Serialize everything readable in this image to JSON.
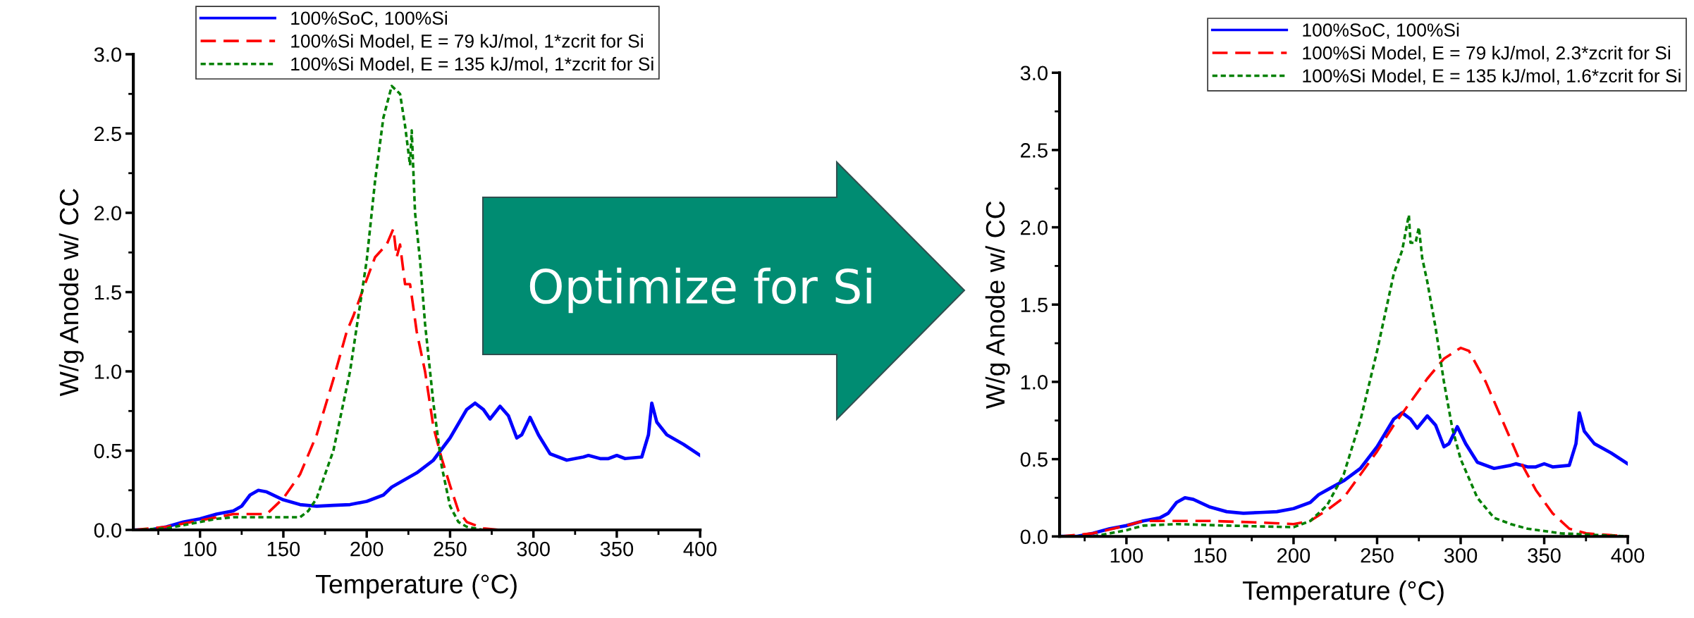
{
  "chart_data": [
    {
      "type": "line",
      "xlabel": "Temperature (°C)",
      "ylabel": "W/g Anode w/ CC",
      "xlim": [
        60,
        400
      ],
      "ylim": [
        0,
        3
      ],
      "xticks": [
        100,
        150,
        200,
        250,
        300,
        350,
        400
      ],
      "yticks": [
        {
          "value": 0,
          "label": "0.0"
        },
        {
          "value": 0.5,
          "label": "0.5"
        },
        {
          "value": 1,
          "label": "1.0"
        },
        {
          "value": 1.5,
          "label": "1.5"
        },
        {
          "value": 2,
          "label": "2.0"
        },
        {
          "value": 2.5,
          "label": "2.5"
        },
        {
          "value": 3,
          "label": "3.0"
        }
      ],
      "grid": false,
      "legend": "top",
      "marker": "none",
      "annotations": [
        "Optimize for Si"
      ],
      "series": [
        {
          "name": "100%SoC, 100%Si",
          "color": "#0000ff",
          "line_style": "solid",
          "x": [
            60,
            70,
            80,
            90,
            100,
            110,
            120,
            125,
            130,
            135,
            140,
            150,
            160,
            170,
            180,
            190,
            200,
            210,
            215,
            220,
            230,
            240,
            250,
            255,
            260,
            265,
            270,
            274,
            280,
            285,
            290,
            293,
            298,
            303,
            310,
            320,
            330,
            333,
            340,
            345,
            350,
            355,
            365,
            369,
            371,
            374,
            380,
            390,
            400
          ],
          "values": [
            0.0,
            0.0,
            0.02,
            0.05,
            0.07,
            0.1,
            0.12,
            0.15,
            0.22,
            0.25,
            0.24,
            0.19,
            0.16,
            0.15,
            0.155,
            0.16,
            0.18,
            0.22,
            0.27,
            0.3,
            0.36,
            0.44,
            0.58,
            0.67,
            0.76,
            0.8,
            0.76,
            0.7,
            0.78,
            0.72,
            0.58,
            0.6,
            0.71,
            0.6,
            0.48,
            0.44,
            0.46,
            0.47,
            0.45,
            0.45,
            0.47,
            0.45,
            0.46,
            0.6,
            0.8,
            0.68,
            0.6,
            0.54,
            0.47
          ]
        },
        {
          "name": "100%Si Model, E = 79 kJ/mol, 1*zcrit for Si",
          "color": "#ff0000",
          "line_style": "dashed",
          "x": [
            60,
            80,
            100,
            120,
            130,
            140,
            150,
            160,
            170,
            180,
            188,
            192,
            200,
            205,
            212,
            216,
            218,
            220,
            223,
            226,
            230,
            235,
            240,
            245,
            250,
            255,
            260,
            270,
            280
          ],
          "values": [
            0,
            0.02,
            0.06,
            0.1,
            0.1,
            0.1,
            0.2,
            0.35,
            0.6,
            0.95,
            1.25,
            1.35,
            1.58,
            1.72,
            1.8,
            1.9,
            1.72,
            1.8,
            1.55,
            1.55,
            1.25,
            1.0,
            0.65,
            0.45,
            0.28,
            0.12,
            0.05,
            0.01,
            0.0
          ]
        },
        {
          "name": "100%Si Model, E = 135 kJ/mol, 1*zcrit for Si",
          "color": "#008000",
          "line_style": "dotted",
          "x": [
            60,
            80,
            100,
            110,
            120,
            140,
            160,
            165,
            170,
            180,
            190,
            200,
            205,
            210,
            215,
            220,
            223,
            226,
            227,
            229,
            232,
            235,
            240,
            245,
            250,
            255,
            260,
            270
          ],
          "values": [
            0,
            0.01,
            0.05,
            0.07,
            0.08,
            0.08,
            0.08,
            0.12,
            0.2,
            0.5,
            1.0,
            1.7,
            2.2,
            2.6,
            2.8,
            2.75,
            2.55,
            2.3,
            2.52,
            2.0,
            1.7,
            1.3,
            0.8,
            0.4,
            0.15,
            0.05,
            0.02,
            0
          ]
        }
      ]
    },
    {
      "type": "line",
      "xlabel": "Temperature (°C)",
      "ylabel": "W/g Anode w/ CC",
      "xlim": [
        60,
        400
      ],
      "ylim": [
        0,
        3
      ],
      "xticks": [
        100,
        150,
        200,
        250,
        300,
        350,
        400
      ],
      "yticks": [
        {
          "value": 0,
          "label": "0.0"
        },
        {
          "value": 0.5,
          "label": "0.5"
        },
        {
          "value": 1,
          "label": "1.0"
        },
        {
          "value": 1.5,
          "label": "1.5"
        },
        {
          "value": 2,
          "label": "2.0"
        },
        {
          "value": 2.5,
          "label": "2.5"
        },
        {
          "value": 3,
          "label": "3.0"
        }
      ],
      "grid": false,
      "legend": "top right",
      "marker": "none",
      "series": [
        {
          "name": "100%SoC, 100%Si",
          "color": "#0000ff",
          "line_style": "solid",
          "x": [
            60,
            70,
            80,
            90,
            100,
            110,
            120,
            125,
            130,
            135,
            140,
            150,
            160,
            170,
            180,
            190,
            200,
            210,
            215,
            220,
            230,
            240,
            250,
            255,
            260,
            265,
            270,
            274,
            280,
            285,
            290,
            293,
            298,
            303,
            310,
            320,
            330,
            333,
            340,
            345,
            350,
            355,
            365,
            369,
            371,
            374,
            380,
            390,
            400
          ],
          "values": [
            0.0,
            0.0,
            0.02,
            0.05,
            0.07,
            0.1,
            0.12,
            0.15,
            0.22,
            0.25,
            0.24,
            0.19,
            0.16,
            0.15,
            0.155,
            0.16,
            0.18,
            0.22,
            0.27,
            0.3,
            0.36,
            0.44,
            0.58,
            0.67,
            0.76,
            0.8,
            0.76,
            0.7,
            0.78,
            0.72,
            0.58,
            0.6,
            0.71,
            0.6,
            0.48,
            0.44,
            0.46,
            0.47,
            0.45,
            0.45,
            0.47,
            0.45,
            0.46,
            0.6,
            0.8,
            0.68,
            0.6,
            0.54,
            0.47
          ]
        },
        {
          "name": "100%Si Model, E = 79 kJ/mol, 2.3*zcrit for Si",
          "color": "#ff0000",
          "line_style": "dashed",
          "x": [
            60,
            80,
            100,
            110,
            120,
            150,
            180,
            200,
            210,
            220,
            230,
            240,
            250,
            260,
            270,
            280,
            290,
            300,
            305,
            315,
            325,
            335,
            345,
            355,
            365,
            375,
            400
          ],
          "values": [
            0,
            0.02,
            0.07,
            0.1,
            0.1,
            0.1,
            0.09,
            0.08,
            0.1,
            0.17,
            0.25,
            0.4,
            0.55,
            0.72,
            0.87,
            1.02,
            1.15,
            1.22,
            1.2,
            1.0,
            0.75,
            0.5,
            0.3,
            0.15,
            0.05,
            0.02,
            0.0
          ]
        },
        {
          "name": "100%Si Model, E = 135 kJ/mol, 1.6*zcrit for Si",
          "color": "#008000",
          "line_style": "dotted",
          "x": [
            60,
            80,
            100,
            110,
            130,
            160,
            200,
            210,
            220,
            230,
            240,
            250,
            255,
            260,
            265,
            269,
            270,
            273,
            275,
            277,
            280,
            285,
            290,
            295,
            300,
            310,
            320,
            330,
            340,
            360,
            400
          ],
          "values": [
            0,
            0.0,
            0.04,
            0.07,
            0.08,
            0.07,
            0.06,
            0.1,
            0.2,
            0.4,
            0.75,
            1.2,
            1.45,
            1.7,
            1.85,
            2.08,
            1.9,
            1.9,
            2.0,
            1.8,
            1.65,
            1.35,
            1.0,
            0.7,
            0.5,
            0.25,
            0.12,
            0.08,
            0.05,
            0.02,
            0
          ]
        }
      ]
    }
  ]
}
